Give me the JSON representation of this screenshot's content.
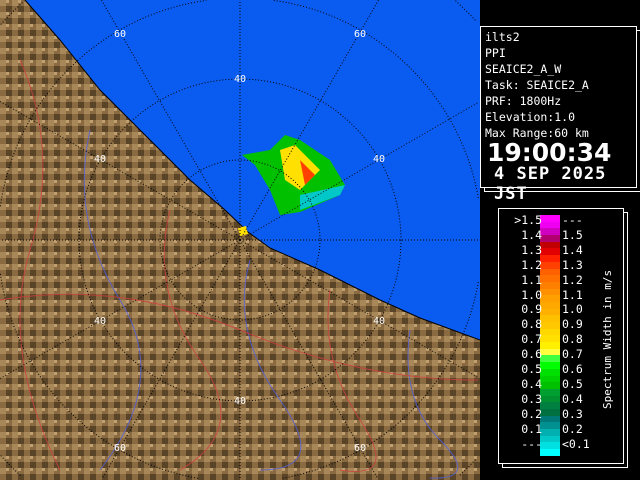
{
  "info": {
    "site": "ilts2",
    "mode": "PPI",
    "scan": "SEAICE2_A_W",
    "task": "Task: SEAICE2_A",
    "prf": "PRF: 1800Hz",
    "elevation": "Elevation:1.0",
    "max_range": "Max Range:60 km",
    "time": "19:00:34",
    "date": "4 SEP 2025 JST"
  },
  "map": {
    "range_labels": [
      "40",
      "40",
      "40",
      "40",
      "40",
      "40",
      "60",
      "60",
      "60",
      "60"
    ],
    "sea_color": "#0a5cf0",
    "land_color": "#8a6a40"
  },
  "legend": {
    "unit": "Spectrum Width in m/s",
    "left_labels": [
      ">1.5",
      "1.4",
      "1.3",
      "1.2",
      "1.1",
      "1.0",
      "0.9",
      "0.8",
      "0.7",
      "0.6",
      "0.5",
      "0.4",
      "0.3",
      "0.2",
      "0.1",
      "---"
    ],
    "right_labels": [
      "---",
      "1.5",
      "1.4",
      "1.3",
      "1.2",
      "1.1",
      "1.0",
      "0.9",
      "0.8",
      "0.7",
      "0.6",
      "0.5",
      "0.4",
      "0.3",
      "0.2",
      "<0.1"
    ],
    "colors": [
      "#ff00ff",
      "#f000f0",
      "#d000c0",
      "#b00070",
      "#c00000",
      "#e00000",
      "#ff2000",
      "#ff4000",
      "#ff6000",
      "#ff7000",
      "#ff8000",
      "#ff9000",
      "#ffa000",
      "#ffa800",
      "#ffb000",
      "#ffc000",
      "#ffc800",
      "#ffd800",
      "#ffe000",
      "#fff000",
      "#ffff40",
      "#40ff40",
      "#00ff00",
      "#00e000",
      "#00d000",
      "#00c000",
      "#00a030",
      "#009030",
      "#008040",
      "#007040",
      "#007878",
      "#009090",
      "#00b0b0",
      "#00c8c8",
      "#00e0e0",
      "#00ffff"
    ]
  }
}
